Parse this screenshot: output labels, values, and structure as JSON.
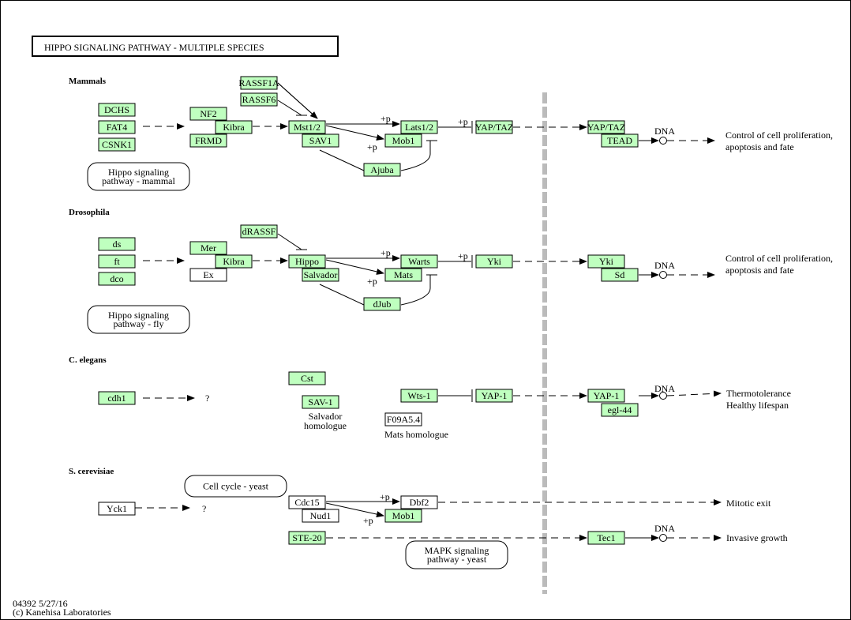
{
  "title": "HIPPO  SIGNALING  PATHWAY  -  MULTIPLE   SPECIES",
  "colors": {
    "gene_fill": "#bfffbf",
    "white_fill": "#ffffff",
    "separator": "#bbbbbb"
  },
  "sections": {
    "mammals": "Mammals",
    "drosophila": "Drosophila",
    "celegans": "C. elegans",
    "yeast": "S. cerevisiae"
  },
  "nodes": {
    "dchs": "DCHS",
    "fat4": "FAT4",
    "csnk1": "CSNK1",
    "nf2": "NF2",
    "kibra_m": "Kibra",
    "frmd": "FRMD",
    "rassf1a": "RASSF1A",
    "rassf6": "RASSF6",
    "mst12": "Mst1/2",
    "sav1": "SAV1",
    "lats12": "Lats1/2",
    "mob1_m": "Mob1",
    "ajuba": "Ajuba",
    "yaptaz1": "YAP/TAZ",
    "yaptaz2": "YAP/TAZ",
    "tead": "TEAD",
    "ds": "ds",
    "ft": "ft",
    "dco": "dco",
    "mer": "Mer",
    "kibra_d": "Kibra",
    "ex": "Ex",
    "drassf": "dRASSF",
    "hippo": "Hippo",
    "salvador": "Salvador",
    "warts": "Warts",
    "mats": "Mats",
    "djub": "dJub",
    "yki1": "Yki",
    "yki2": "Yki",
    "sd": "Sd",
    "cdh1": "cdh1",
    "cst": "Cst",
    "sav_1": "SAV-1",
    "wts_1": "Wts-1",
    "f09a5": "F09A5.4",
    "yap1a": "YAP-1",
    "yap1b": "YAP-1",
    "egl44": "egl-44",
    "yck1": "Yck1",
    "cdc15": "Cdc15",
    "nud1": "Nud1",
    "dbf2": "Dbf2",
    "mob1_y": "Mob1",
    "ste20": "STE-20",
    "tec1": "Tec1"
  },
  "maps": {
    "mammal": [
      "Hippo signaling",
      "pathway - mammal"
    ],
    "fly": [
      "Hippo signaling",
      "pathway - fly"
    ],
    "cellcycle": [
      "Cell cycle - yeast"
    ],
    "mapk": [
      "MAPK signaling",
      "pathway - yeast"
    ]
  },
  "labels": {
    "plus_p": "+p",
    "dna": "DNA",
    "unknown": "?",
    "out_mammal": [
      "Control of cell proliferation,",
      "apoptosis and fate"
    ],
    "out_fly": [
      "Control of cell proliferation,",
      "apoptosis and fate"
    ],
    "out_worm": [
      "Thermotolerance",
      "Healthy lifespan"
    ],
    "out_mitotic": "Mitotic exit",
    "out_invasive": "Invasive growth",
    "salvador_homologue": [
      "Salvador",
      "homologue"
    ],
    "mats_homologue": "Mats homologue"
  },
  "footer": {
    "id": "04392 5/27/16",
    "copyright": "(c) Kanehisa Laboratories"
  }
}
